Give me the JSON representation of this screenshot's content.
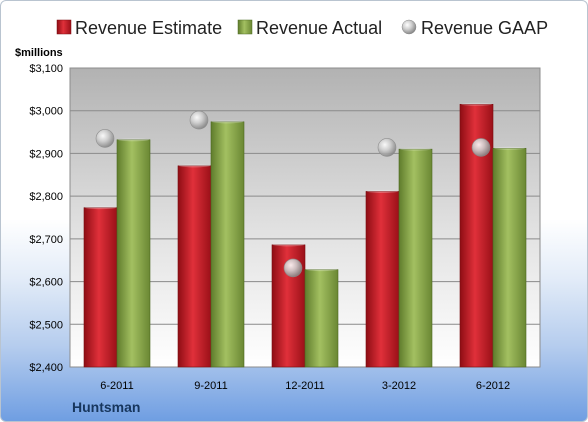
{
  "company": "Huntsman",
  "chart_data": {
    "type": "bar",
    "ylabel": "$millions",
    "categories": [
      "6-2011",
      "9-2011",
      "12-2011",
      "3-2012",
      "6-2012"
    ],
    "ylim": [
      2400,
      3100
    ],
    "yticks": [
      2400,
      2500,
      2600,
      2700,
      2800,
      2900,
      3000,
      3100
    ],
    "ytick_labels": [
      "$2,400",
      "$2,500",
      "$2,600",
      "$2,700",
      "$2,800",
      "$2,900",
      "$3,000",
      "$3,100"
    ],
    "grid": true,
    "legend_position": "top",
    "series": [
      {
        "name": "Revenue Estimate",
        "type": "bar",
        "color": "#c0202a",
        "values": [
          2773,
          2871,
          2686,
          2811,
          3015
        ]
      },
      {
        "name": "Revenue Actual",
        "type": "bar",
        "color": "#8aaa4a",
        "values": [
          2932,
          2974,
          2628,
          2910,
          2912
        ]
      },
      {
        "name": "Revenue GAAP",
        "type": "marker",
        "color": "#b8b8b8",
        "values": [
          2935,
          2978,
          2632,
          2914,
          2914
        ]
      }
    ]
  }
}
